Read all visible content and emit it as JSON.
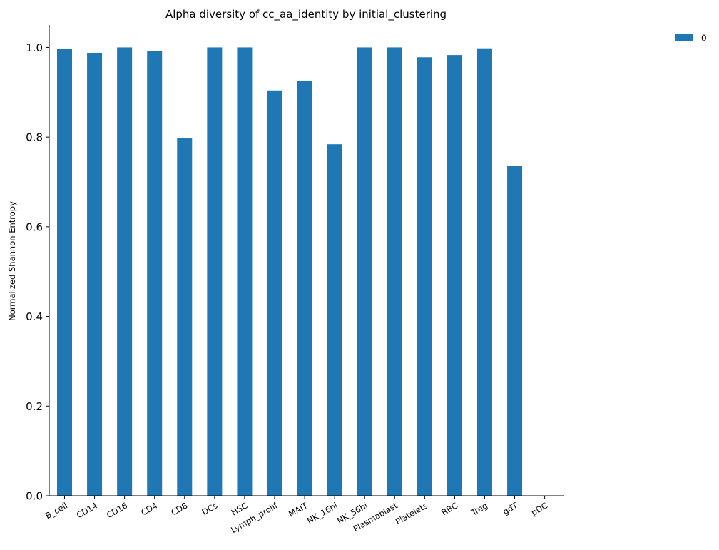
{
  "chart_data": {
    "type": "bar",
    "title": "Alpha diversity of cc_aa_identity by initial_clustering",
    "xlabel": "",
    "ylabel": "Normalized Shannon Entropy",
    "ylim": [
      0,
      1.05
    ],
    "yticks": [
      0.0,
      0.2,
      0.4,
      0.6,
      0.8,
      1.0
    ],
    "ytick_labels": [
      "0.0",
      "0.2",
      "0.4",
      "0.6",
      "0.8",
      "1.0"
    ],
    "categories": [
      "B_cell",
      "CD14",
      "CD16",
      "CD4",
      "CD8",
      "DCs",
      "HSC",
      "Lymph_prolif",
      "MAIT",
      "NK_16hi",
      "NK_56hi",
      "Plasmablast",
      "Platelets",
      "RBC",
      "Treg",
      "gdT",
      "pDC"
    ],
    "series": [
      {
        "name": "0",
        "color": "#1f77b4",
        "values": [
          0.996,
          0.988,
          1.0,
          0.992,
          0.797,
          1.0,
          1.0,
          0.904,
          0.925,
          0.784,
          1.0,
          1.0,
          0.978,
          0.983,
          0.998,
          0.735,
          0.0
        ]
      }
    ],
    "grid": false,
    "legend_position": "top-right"
  }
}
